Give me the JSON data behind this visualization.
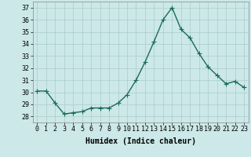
{
  "x": [
    0,
    1,
    2,
    3,
    4,
    5,
    6,
    7,
    8,
    9,
    10,
    11,
    12,
    13,
    14,
    15,
    16,
    17,
    18,
    19,
    20,
    21,
    22,
    23
  ],
  "y": [
    30.1,
    30.1,
    29.1,
    28.2,
    28.3,
    28.4,
    28.7,
    28.7,
    28.7,
    29.1,
    29.8,
    31.0,
    32.5,
    34.2,
    36.0,
    37.0,
    35.2,
    34.5,
    33.2,
    32.1,
    31.4,
    30.7,
    30.9,
    30.4
  ],
  "line_color": "#1a6b5a",
  "marker": "+",
  "marker_size": 4,
  "bg_color": "#cce8e8",
  "grid_color": "#aacccc",
  "xlabel": "Humidex (Indice chaleur)",
  "ylim": [
    27.5,
    37.5
  ],
  "yticks": [
    28,
    29,
    30,
    31,
    32,
    33,
    34,
    35,
    36,
    37
  ],
  "xticks": [
    0,
    1,
    2,
    3,
    4,
    5,
    6,
    7,
    8,
    9,
    10,
    11,
    12,
    13,
    14,
    15,
    16,
    17,
    18,
    19,
    20,
    21,
    22,
    23
  ],
  "xlabel_fontsize": 7,
  "tick_fontsize": 6,
  "linewidth": 1.0
}
